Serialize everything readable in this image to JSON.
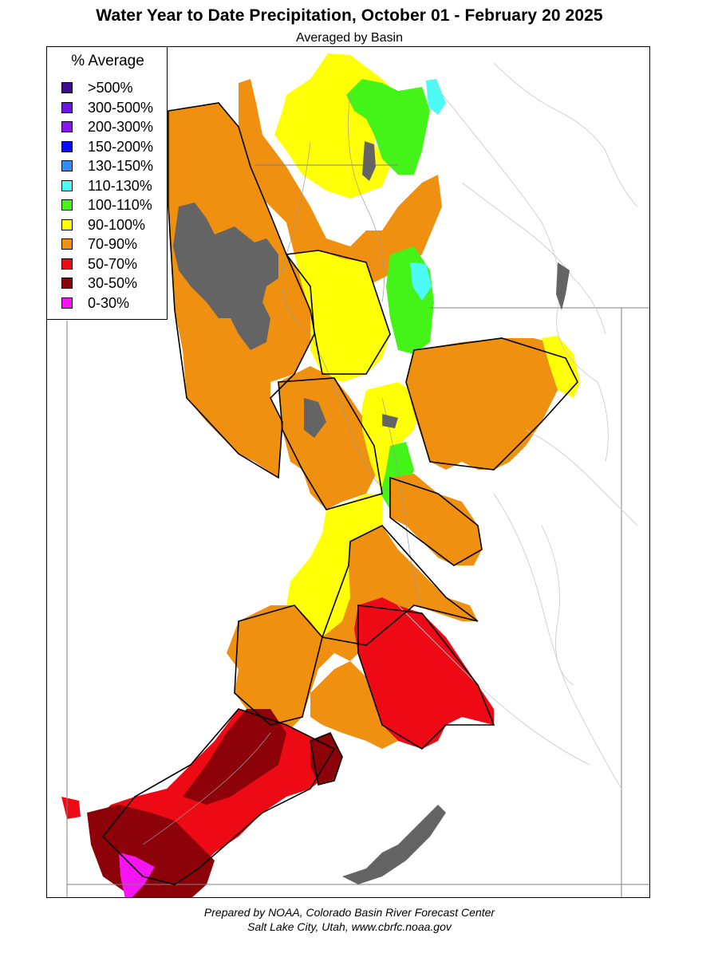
{
  "header": {
    "title": "Water Year to Date Precipitation, October 01  - February 20 2025",
    "subtitle": "Averaged by Basin"
  },
  "legend": {
    "title": "% Average",
    "items": [
      {
        "label": ">500%",
        "color": "#3c0c8c"
      },
      {
        "label": "300-500%",
        "color": "#6e12e4"
      },
      {
        "label": "200-300%",
        "color": "#8c12f6"
      },
      {
        "label": "150-200%",
        "color": "#0a0afa"
      },
      {
        "label": "130-150%",
        "color": "#2e8cf5"
      },
      {
        "label": "110-130%",
        "color": "#4cfbf5"
      },
      {
        "label": "100-110%",
        "color": "#44f418"
      },
      {
        "label": "90-100%",
        "color": "#ffff06"
      },
      {
        "label": "70-90%",
        "color": "#f09010"
      },
      {
        "label": "50-70%",
        "color": "#ee0a14"
      },
      {
        "label": "30-50%",
        "color": "#8c0208"
      },
      {
        "label": "0-30%",
        "color": "#f414f4"
      }
    ]
  },
  "map": {
    "basins": [
      {
        "category": "70-90%",
        "color": "#f09010"
      },
      {
        "category": "90-100%",
        "color": "#ffff06"
      },
      {
        "category": "100-110%",
        "color": "#44f418"
      },
      {
        "category": "110-130%",
        "color": "#4cfbf5"
      },
      {
        "category": "50-70%",
        "color": "#ee0a14"
      },
      {
        "category": "30-50%",
        "color": "#8c0208"
      },
      {
        "category": "0-30%",
        "color": "#f414f4"
      }
    ],
    "lake_color": "#646464"
  },
  "footer": {
    "line1": "Prepared by NOAA, Colorado Basin River Forecast Center",
    "line2": "Salt Lake City, Utah, www.cbrfc.noaa.gov"
  }
}
